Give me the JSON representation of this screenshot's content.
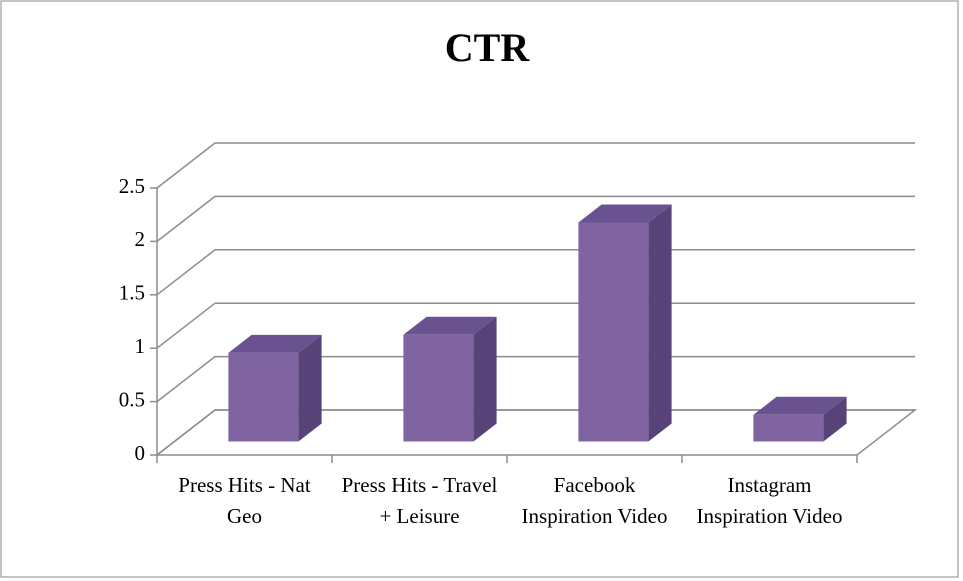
{
  "chart_data": {
    "type": "bar3d",
    "title": "CTR",
    "categories": [
      "Press Hits - Nat Geo",
      "Press Hits - Travel + Leisure",
      "Facebook Inspiration Video",
      "Instagram Inspiration Video"
    ],
    "values": [
      0.83,
      1.0,
      2.05,
      0.25
    ],
    "color": "#8064a2",
    "ylim": [
      0,
      2.5
    ],
    "yticks": [
      0,
      0.5,
      1,
      1.5,
      2,
      2.5
    ],
    "grid": true
  }
}
